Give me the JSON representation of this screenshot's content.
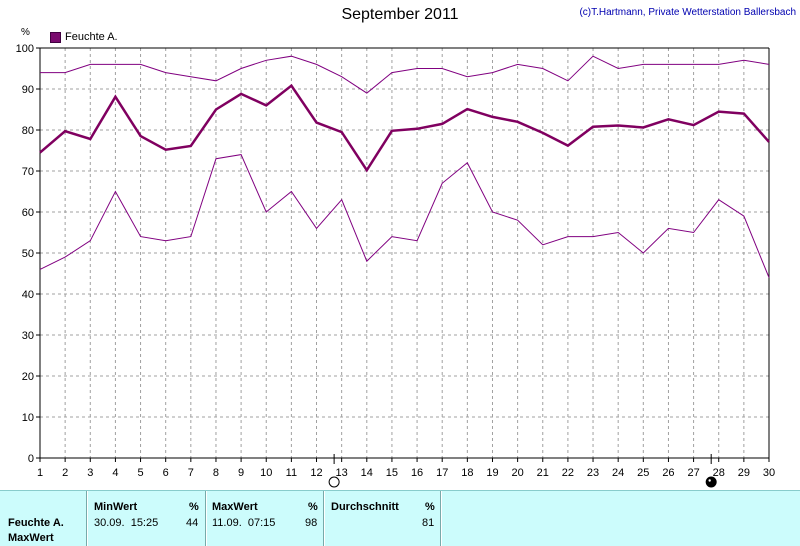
{
  "chart_data": {
    "type": "line",
    "title": "September 2011",
    "copyright": "(c)T.Hartmann, Private Wetterstation Ballersbach",
    "ylabel": "%",
    "legend": {
      "label": "Feuchte A.",
      "placement": "top-left"
    },
    "x": [
      1,
      2,
      3,
      4,
      5,
      6,
      7,
      8,
      9,
      10,
      11,
      12,
      13,
      14,
      15,
      16,
      17,
      18,
      19,
      20,
      21,
      22,
      23,
      24,
      25,
      26,
      27,
      28,
      29,
      30
    ],
    "xlim": [
      1,
      30
    ],
    "ylim": [
      0,
      100
    ],
    "yticks": [
      0,
      10,
      20,
      30,
      40,
      50,
      60,
      70,
      80,
      90,
      100
    ],
    "grid": true,
    "series": [
      {
        "values": [
          94,
          94,
          96,
          96,
          96,
          94,
          93,
          92,
          95,
          97,
          98,
          96,
          93,
          89,
          94,
          95,
          95,
          93,
          94,
          96,
          95,
          92,
          98,
          95,
          96,
          96,
          96,
          96,
          97,
          96
        ],
        "color": "#800080",
        "width": 1
      },
      {
        "values": [
          74.5,
          79.7,
          77.8,
          88.1,
          78.5,
          75.2,
          76.1,
          85.0,
          88.8,
          86.0,
          90.8,
          81.8,
          79.5,
          70.2,
          79.8,
          80.3,
          81.5,
          85.1,
          83.2,
          82.0,
          79.3,
          76.2,
          80.8,
          81.1,
          80.6,
          82.6,
          81.2,
          84.5,
          84.0,
          77.1
        ],
        "color": "#800060",
        "width": 2.5
      },
      {
        "values": [
          46,
          49,
          53,
          65,
          54,
          53,
          54,
          73,
          74,
          60,
          65,
          56,
          63,
          48,
          54,
          53,
          67,
          72,
          60,
          58,
          52,
          54,
          54,
          55,
          50,
          56,
          55,
          63,
          59,
          44
        ],
        "color": "#800080",
        "width": 1
      }
    ],
    "moon_phases": [
      {
        "x": 12.7,
        "phase": "new"
      },
      {
        "x": 27.7,
        "phase": "full"
      }
    ]
  },
  "stats": {
    "row_label": "Feuchte A.",
    "row_sublabel": "MaxWert",
    "min": {
      "header": "MinWert",
      "unit": "%",
      "when": "30.09.  15:25",
      "value": "44"
    },
    "max": {
      "header": "MaxWert",
      "unit": "%",
      "when": "11.09.  07:15",
      "value": "98"
    },
    "avg": {
      "header": "Durchschnitt",
      "unit": "%",
      "value": "81"
    }
  },
  "colors": {
    "panel_bg": "#ccfcfc",
    "series": "#800080",
    "grid": "#a0a0a0"
  }
}
